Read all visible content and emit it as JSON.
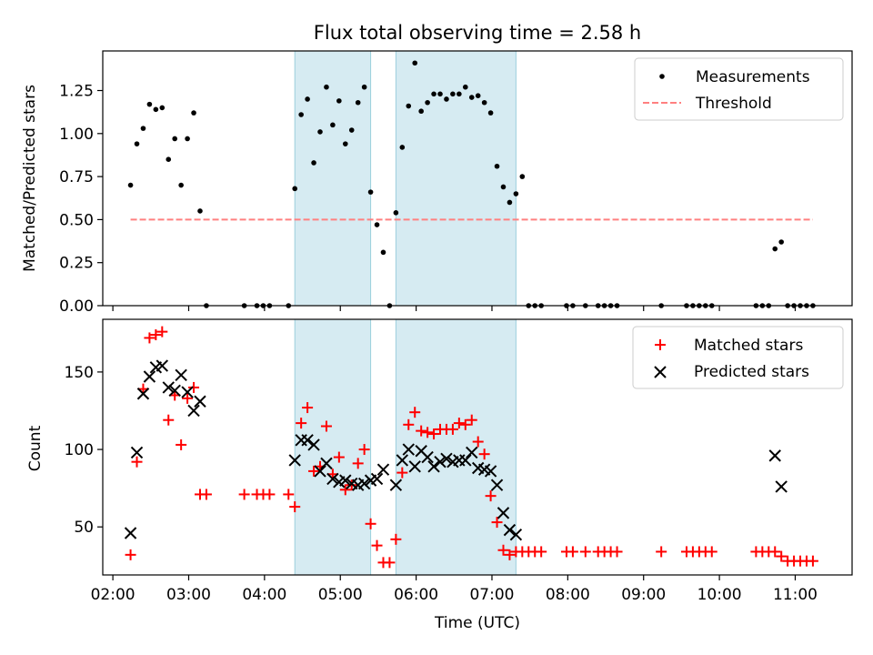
{
  "chart_data": [
    {
      "type": "scatter",
      "title": "Flux total observing time = 2.58 h",
      "xlabel": "",
      "ylabel": "Matched/Predicted stars",
      "ylim": [
        0,
        1.48
      ],
      "xlim": [
        "01:52",
        "11:45"
      ],
      "yticks": [
        0.0,
        0.25,
        0.5,
        0.75,
        1.0,
        1.25
      ],
      "ytick_labels": [
        "0.00",
        "0.25",
        "0.50",
        "0.75",
        "1.00",
        "1.25"
      ],
      "legend_position": "top-right",
      "shaded_intervals": [
        [
          "04:24",
          "05:24"
        ],
        [
          "05:44",
          "07:19"
        ]
      ],
      "series": [
        {
          "name": "Measurements",
          "marker": "dot",
          "color": "#000000",
          "points": [
            [
              "02:14",
              0.7
            ],
            [
              "02:19",
              0.94
            ],
            [
              "02:24",
              1.03
            ],
            [
              "02:29",
              1.17
            ],
            [
              "02:34",
              1.14
            ],
            [
              "02:39",
              1.15
            ],
            [
              "02:44",
              0.85
            ],
            [
              "02:49",
              0.97
            ],
            [
              "02:54",
              0.7
            ],
            [
              "02:59",
              0.97
            ],
            [
              "03:04",
              1.12
            ],
            [
              "03:09",
              0.55
            ],
            [
              "03:14",
              0.0
            ],
            [
              "03:44",
              0.0
            ],
            [
              "03:54",
              0.0
            ],
            [
              "03:59",
              0.0
            ],
            [
              "04:04",
              0.0
            ],
            [
              "04:19",
              0.0
            ],
            [
              "04:24",
              0.68
            ],
            [
              "04:29",
              1.11
            ],
            [
              "04:34",
              1.2
            ],
            [
              "04:39",
              0.83
            ],
            [
              "04:44",
              1.01
            ],
            [
              "04:49",
              1.27
            ],
            [
              "04:54",
              1.05
            ],
            [
              "04:59",
              1.19
            ],
            [
              "05:04",
              0.94
            ],
            [
              "05:09",
              1.02
            ],
            [
              "05:14",
              1.18
            ],
            [
              "05:19",
              1.27
            ],
            [
              "05:24",
              0.66
            ],
            [
              "05:29",
              0.47
            ],
            [
              "05:34",
              0.31
            ],
            [
              "05:39",
              0.0
            ],
            [
              "05:44",
              0.54
            ],
            [
              "05:49",
              0.92
            ],
            [
              "05:54",
              1.16
            ],
            [
              "05:59",
              1.41
            ],
            [
              "06:04",
              1.13
            ],
            [
              "06:09",
              1.18
            ],
            [
              "06:14",
              1.23
            ],
            [
              "06:19",
              1.23
            ],
            [
              "06:24",
              1.2
            ],
            [
              "06:29",
              1.23
            ],
            [
              "06:34",
              1.23
            ],
            [
              "06:39",
              1.27
            ],
            [
              "06:44",
              1.21
            ],
            [
              "06:49",
              1.22
            ],
            [
              "06:54",
              1.18
            ],
            [
              "06:59",
              1.12
            ],
            [
              "07:04",
              0.81
            ],
            [
              "07:09",
              0.69
            ],
            [
              "07:14",
              0.6
            ],
            [
              "07:19",
              0.65
            ],
            [
              "07:24",
              0.75
            ],
            [
              "07:29",
              0.0
            ],
            [
              "07:34",
              0.0
            ],
            [
              "07:39",
              0.0
            ],
            [
              "07:59",
              0.0
            ],
            [
              "08:04",
              0.0
            ],
            [
              "08:14",
              0.0
            ],
            [
              "08:24",
              0.0
            ],
            [
              "08:29",
              0.0
            ],
            [
              "08:34",
              0.0
            ],
            [
              "08:39",
              0.0
            ],
            [
              "09:14",
              0.0
            ],
            [
              "09:34",
              0.0
            ],
            [
              "09:39",
              0.0
            ],
            [
              "09:44",
              0.0
            ],
            [
              "09:49",
              0.0
            ],
            [
              "09:54",
              0.0
            ],
            [
              "10:29",
              0.0
            ],
            [
              "10:34",
              0.0
            ],
            [
              "10:39",
              0.0
            ],
            [
              "10:44",
              0.33
            ],
            [
              "10:49",
              0.37
            ],
            [
              "10:54",
              0.0
            ],
            [
              "10:59",
              0.0
            ],
            [
              "11:04",
              0.0
            ],
            [
              "11:09",
              0.0
            ],
            [
              "11:14",
              0.0
            ]
          ]
        },
        {
          "name": "Threshold",
          "marker": "dashed-line",
          "color": "#ff8080",
          "points": [
            [
              "02:14",
              0.5
            ],
            [
              "11:14",
              0.5
            ]
          ]
        }
      ]
    },
    {
      "type": "scatter",
      "title": "",
      "xlabel": "Time (UTC)",
      "ylabel": "Count",
      "ylim": [
        19,
        184
      ],
      "xlim": [
        "01:52",
        "11:45"
      ],
      "yticks": [
        50,
        100,
        150
      ],
      "ytick_labels": [
        "50",
        "100",
        "150"
      ],
      "xtick_labels": [
        "02:00",
        "03:00",
        "04:00",
        "05:00",
        "06:00",
        "07:00",
        "08:00",
        "09:00",
        "10:00",
        "11:00"
      ],
      "legend_position": "top-right",
      "shaded_intervals": [
        [
          "04:24",
          "05:24"
        ],
        [
          "05:44",
          "07:19"
        ]
      ],
      "series": [
        {
          "name": "Matched stars",
          "marker": "plus",
          "color": "#ff0000",
          "points": [
            [
              "02:14",
              32
            ],
            [
              "02:19",
              92
            ],
            [
              "02:24",
              139
            ],
            [
              "02:29",
              172
            ],
            [
              "02:34",
              174
            ],
            [
              "02:39",
              176
            ],
            [
              "02:44",
              119
            ],
            [
              "02:49",
              135
            ],
            [
              "02:54",
              103
            ],
            [
              "02:59",
              133
            ],
            [
              "03:04",
              140
            ],
            [
              "03:09",
              71
            ],
            [
              "03:14",
              71
            ],
            [
              "03:44",
              71
            ],
            [
              "03:54",
              71
            ],
            [
              "03:59",
              71
            ],
            [
              "04:04",
              71
            ],
            [
              "04:19",
              71
            ],
            [
              "04:24",
              63
            ],
            [
              "04:29",
              117
            ],
            [
              "04:34",
              127
            ],
            [
              "04:39",
              86
            ],
            [
              "04:44",
              89
            ],
            [
              "04:49",
              115
            ],
            [
              "04:54",
              84
            ],
            [
              "04:59",
              95
            ],
            [
              "05:04",
              74
            ],
            [
              "05:09",
              77
            ],
            [
              "05:14",
              91
            ],
            [
              "05:19",
              100
            ],
            [
              "05:24",
              52
            ],
            [
              "05:29",
              38
            ],
            [
              "05:34",
              27
            ],
            [
              "05:39",
              27
            ],
            [
              "05:44",
              42
            ],
            [
              "05:49",
              85
            ],
            [
              "05:54",
              116
            ],
            [
              "05:59",
              124
            ],
            [
              "06:04",
              112
            ],
            [
              "06:09",
              111
            ],
            [
              "06:14",
              110
            ],
            [
              "06:19",
              113
            ],
            [
              "06:24",
              113
            ],
            [
              "06:29",
              113
            ],
            [
              "06:34",
              117
            ],
            [
              "06:39",
              116
            ],
            [
              "06:44",
              119
            ],
            [
              "06:49",
              105
            ],
            [
              "06:54",
              97
            ],
            [
              "06:59",
              70
            ],
            [
              "07:04",
              53
            ],
            [
              "07:09",
              35
            ],
            [
              "07:14",
              32
            ],
            [
              "07:19",
              34
            ],
            [
              "07:24",
              34
            ],
            [
              "07:29",
              34
            ],
            [
              "07:34",
              34
            ],
            [
              "07:39",
              34
            ],
            [
              "07:59",
              34
            ],
            [
              "08:04",
              34
            ],
            [
              "08:14",
              34
            ],
            [
              "08:24",
              34
            ],
            [
              "08:29",
              34
            ],
            [
              "08:34",
              34
            ],
            [
              "08:39",
              34
            ],
            [
              "09:14",
              34
            ],
            [
              "09:34",
              34
            ],
            [
              "09:39",
              34
            ],
            [
              "09:44",
              34
            ],
            [
              "09:49",
              34
            ],
            [
              "09:54",
              34
            ],
            [
              "10:29",
              34
            ],
            [
              "10:34",
              34
            ],
            [
              "10:39",
              34
            ],
            [
              "10:44",
              34
            ],
            [
              "10:49",
              31
            ],
            [
              "10:54",
              28
            ],
            [
              "10:59",
              28
            ],
            [
              "11:04",
              28
            ],
            [
              "11:09",
              28
            ],
            [
              "11:14",
              28
            ]
          ]
        },
        {
          "name": "Predicted stars",
          "marker": "x",
          "color": "#000000",
          "points": [
            [
              "02:14",
              46
            ],
            [
              "02:19",
              98
            ],
            [
              "02:24",
              136
            ],
            [
              "02:29",
              147
            ],
            [
              "02:34",
              153
            ],
            [
              "02:39",
              154
            ],
            [
              "02:44",
              140
            ],
            [
              "02:49",
              138
            ],
            [
              "02:54",
              148
            ],
            [
              "02:59",
              137
            ],
            [
              "03:04",
              125
            ],
            [
              "03:09",
              131
            ],
            [
              "04:24",
              93
            ],
            [
              "04:29",
              106
            ],
            [
              "04:34",
              106
            ],
            [
              "04:39",
              103
            ],
            [
              "04:44",
              86
            ],
            [
              "04:49",
              91
            ],
            [
              "04:54",
              81
            ],
            [
              "04:59",
              79
            ],
            [
              "05:04",
              80
            ],
            [
              "05:09",
              78
            ],
            [
              "05:14",
              77
            ],
            [
              "05:19",
              78
            ],
            [
              "05:24",
              80
            ],
            [
              "05:29",
              81
            ],
            [
              "05:34",
              87
            ],
            [
              "05:44",
              77
            ],
            [
              "05:49",
              93
            ],
            [
              "05:54",
              100
            ],
            [
              "05:59",
              89
            ],
            [
              "06:04",
              99
            ],
            [
              "06:09",
              95
            ],
            [
              "06:14",
              89
            ],
            [
              "06:19",
              92
            ],
            [
              "06:24",
              94
            ],
            [
              "06:29",
              92
            ],
            [
              "06:34",
              93
            ],
            [
              "06:39",
              93
            ],
            [
              "06:44",
              98
            ],
            [
              "06:49",
              88
            ],
            [
              "06:54",
              87
            ],
            [
              "06:59",
              86
            ],
            [
              "07:04",
              77
            ],
            [
              "07:09",
              59
            ],
            [
              "07:14",
              48
            ],
            [
              "07:19",
              45
            ],
            [
              "10:44",
              96
            ],
            [
              "10:49",
              76
            ]
          ]
        }
      ]
    }
  ]
}
